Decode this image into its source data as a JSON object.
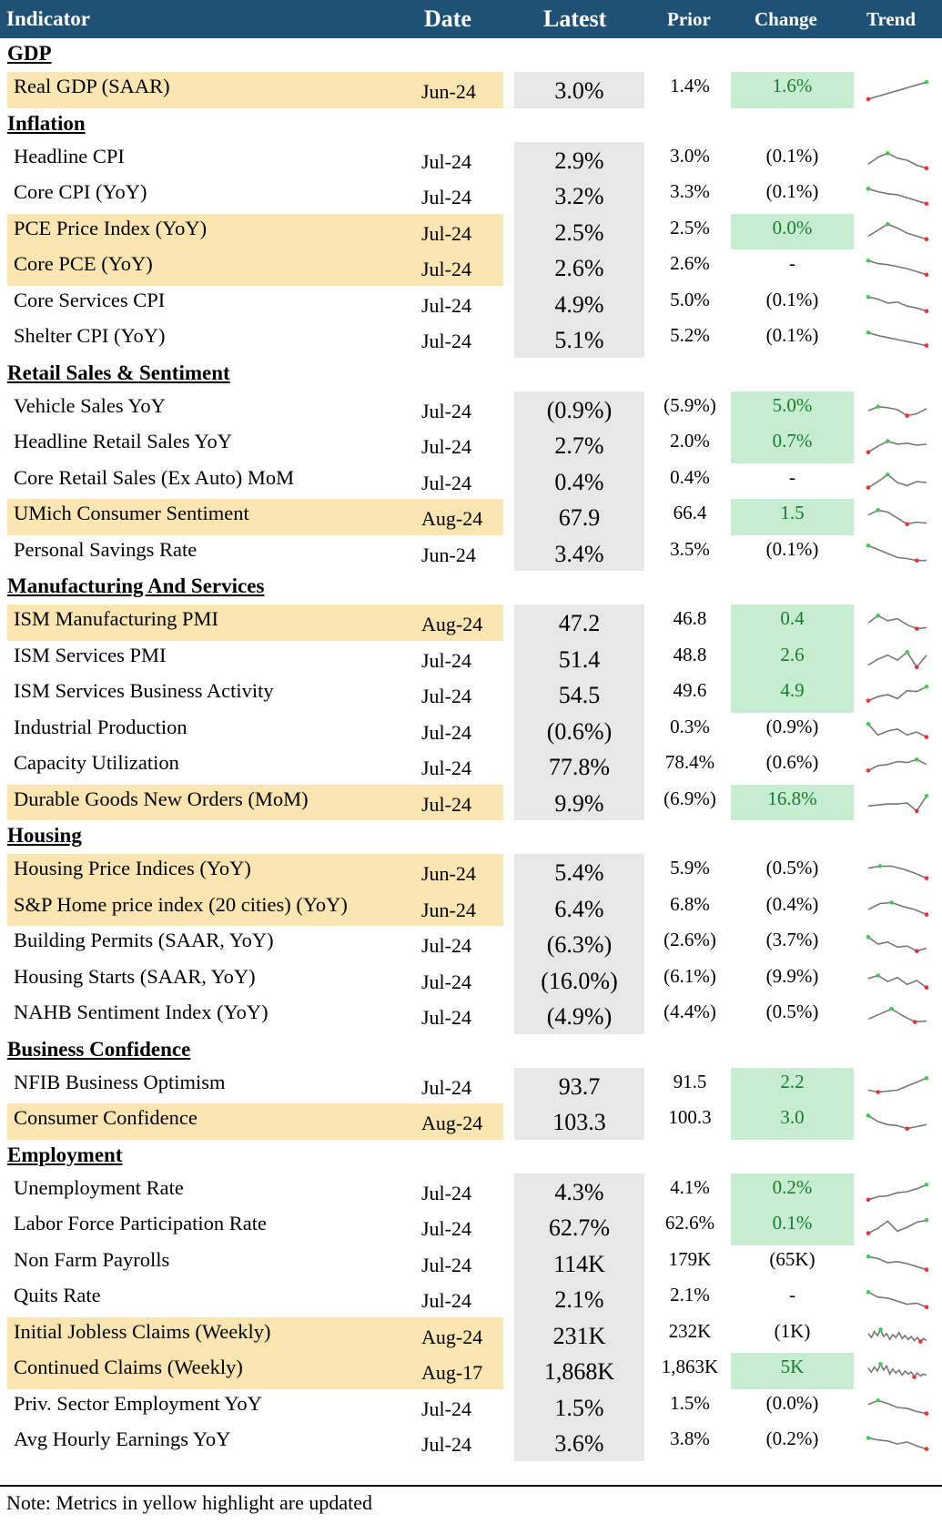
{
  "header": {
    "indicator": "Indicator",
    "date": "Date",
    "latest": "Latest",
    "prior": "Prior",
    "change": "Change",
    "trend": "Trend"
  },
  "colors": {
    "header_bg": "#1f5174",
    "updated_highlight": "#fbe5b1",
    "latest_bg": "#e7e7e7",
    "positive_change_bg": "#c6edcf",
    "positive_change_text": "#1a7a33",
    "sparkline_line": "#777777",
    "sparkline_high": "#4cc45a",
    "sparkline_low": "#e8343a"
  },
  "sections": [
    {
      "title": "GDP",
      "rows": [
        {
          "name": "Real GDP (SAAR)",
          "date": "Jun-24",
          "latest": "3.0%",
          "prior": "1.4%",
          "change": "1.6%",
          "positive": true,
          "updated": true,
          "trend": [
            0.05,
            0.9
          ],
          "trend_icon": "sparkline-icon"
        }
      ]
    },
    {
      "title": "Inflation",
      "rows": [
        {
          "name": "Headline CPI",
          "date": "Jul-24",
          "latest": "2.9%",
          "prior": "3.0%",
          "change": "(0.1%)",
          "positive": false,
          "updated": false,
          "trend": [
            0.3,
            0.65,
            0.85,
            0.6,
            0.5,
            0.25,
            0.1
          ],
          "trend_icon": "sparkline-icon"
        },
        {
          "name": "Core CPI (YoY)",
          "date": "Jul-24",
          "latest": "3.2%",
          "prior": "3.3%",
          "change": "(0.1%)",
          "positive": false,
          "updated": false,
          "trend": [
            0.85,
            0.7,
            0.6,
            0.55,
            0.4,
            0.25,
            0.1
          ],
          "trend_icon": "sparkline-icon"
        },
        {
          "name": "PCE Price Index (YoY)",
          "date": "Jul-24",
          "latest": "2.5%",
          "prior": "2.5%",
          "change": "0.0%",
          "positive": true,
          "updated": true,
          "trend": [
            0.3,
            0.6,
            0.9,
            0.7,
            0.45,
            0.3,
            0.15
          ],
          "trend_icon": "sparkline-icon"
        },
        {
          "name": "Core PCE (YoY)",
          "date": "Jul-24",
          "latest": "2.6%",
          "prior": "2.6%",
          "change": "-",
          "positive": false,
          "updated": true,
          "trend": [
            0.85,
            0.7,
            0.65,
            0.55,
            0.45,
            0.3,
            0.15
          ],
          "trend_icon": "sparkline-icon"
        },
        {
          "name": "Core Services CPI",
          "date": "Jul-24",
          "latest": "4.9%",
          "prior": "5.0%",
          "change": "(0.1%)",
          "positive": false,
          "updated": false,
          "trend": [
            0.85,
            0.75,
            0.55,
            0.6,
            0.4,
            0.3,
            0.15
          ],
          "trend_icon": "sparkline-icon"
        },
        {
          "name": "Shelter CPI (YoY)",
          "date": "Jul-24",
          "latest": "5.1%",
          "prior": "5.2%",
          "change": "(0.1%)",
          "positive": false,
          "updated": false,
          "trend": [
            0.85,
            0.7,
            0.6,
            0.5,
            0.4,
            0.3,
            0.2
          ],
          "trend_icon": "sparkline-icon"
        }
      ]
    },
    {
      "title": "Retail Sales & Sentiment",
      "rows": [
        {
          "name": "Vehicle Sales YoY",
          "date": "Jul-24",
          "latest": "(0.9%)",
          "prior": "(5.9%)",
          "change": "5.0%",
          "positive": true,
          "updated": false,
          "trend": [
            0.45,
            0.65,
            0.6,
            0.5,
            0.2,
            0.3,
            0.55
          ],
          "trend_icon": "sparkline-icon"
        },
        {
          "name": "Headline Retail Sales YoY",
          "date": "Jul-24",
          "latest": "2.7%",
          "prior": "2.0%",
          "change": "0.7%",
          "positive": true,
          "updated": false,
          "trend": [
            0.15,
            0.45,
            0.7,
            0.55,
            0.6,
            0.5,
            0.55
          ],
          "trend_icon": "sparkline-icon"
        },
        {
          "name": "Core Retail Sales (Ex Auto) MoM",
          "date": "Jul-24",
          "latest": "0.4%",
          "prior": "0.4%",
          "change": "-",
          "positive": false,
          "updated": false,
          "trend": [
            0.2,
            0.5,
            0.85,
            0.45,
            0.3,
            0.5,
            0.45
          ],
          "trend_icon": "sparkline-icon"
        },
        {
          "name": "UMich Consumer Sentiment",
          "date": "Aug-24",
          "latest": "67.9",
          "prior": "66.4",
          "change": "1.5",
          "positive": true,
          "updated": true,
          "trend": [
            0.6,
            0.85,
            0.75,
            0.45,
            0.15,
            0.25,
            0.2
          ],
          "trend_icon": "sparkline-icon"
        },
        {
          "name": "Personal Savings Rate",
          "date": "Jun-24",
          "latest": "3.4%",
          "prior": "3.5%",
          "change": "(0.1%)",
          "positive": false,
          "updated": false,
          "trend": [
            0.9,
            0.7,
            0.5,
            0.3,
            0.25,
            0.15,
            0.15
          ],
          "trend_icon": "sparkline-icon"
        }
      ]
    },
    {
      "title": "Manufacturing And Services",
      "rows": [
        {
          "name": "ISM Manufacturing PMI",
          "date": "Aug-24",
          "latest": "47.2",
          "prior": "46.8",
          "change": "0.4",
          "positive": true,
          "updated": true,
          "trend": [
            0.5,
            0.85,
            0.6,
            0.7,
            0.4,
            0.2,
            0.25
          ],
          "trend_icon": "sparkline-icon"
        },
        {
          "name": "ISM Services PMI",
          "date": "Jul-24",
          "latest": "51.4",
          "prior": "48.8",
          "change": "2.6",
          "positive": true,
          "updated": false,
          "trend": [
            0.2,
            0.5,
            0.7,
            0.45,
            0.85,
            0.1,
            0.7
          ],
          "trend_icon": "sparkline-icon"
        },
        {
          "name": "ISM Services Business Activity",
          "date": "Jul-24",
          "latest": "54.5",
          "prior": "49.6",
          "change": "4.9",
          "positive": true,
          "updated": false,
          "trend": [
            0.2,
            0.4,
            0.5,
            0.3,
            0.7,
            0.65,
            0.9
          ],
          "trend_icon": "sparkline-icon"
        },
        {
          "name": "Industrial Production",
          "date": "Jul-24",
          "latest": "(0.6%)",
          "prior": "0.3%",
          "change": "(0.9%)",
          "positive": false,
          "updated": false,
          "trend": [
            0.85,
            0.3,
            0.5,
            0.6,
            0.3,
            0.45,
            0.2
          ],
          "trend_icon": "sparkline-icon"
        },
        {
          "name": "Capacity Utilization",
          "date": "Jul-24",
          "latest": "77.8%",
          "prior": "78.4%",
          "change": "(0.6%)",
          "positive": false,
          "updated": false,
          "trend": [
            0.3,
            0.55,
            0.6,
            0.75,
            0.7,
            0.85,
            0.6
          ],
          "trend_icon": "sparkline-icon"
        },
        {
          "name": "Durable Goods New Orders (MoM)",
          "date": "Jul-24",
          "latest": "9.9%",
          "prior": "(6.9%)",
          "change": "16.8%",
          "positive": true,
          "updated": true,
          "trend": [
            0.35,
            0.4,
            0.45,
            0.45,
            0.5,
            0.1,
            0.85
          ],
          "trend_icon": "sparkline-icon"
        }
      ]
    },
    {
      "title": "Housing",
      "rows": [
        {
          "name": "Housing Price Indices (YoY)",
          "date": "Jun-24",
          "latest": "5.4%",
          "prior": "5.9%",
          "change": "(0.5%)",
          "positive": false,
          "updated": true,
          "trend": [
            0.7,
            0.8,
            0.8,
            0.65,
            0.45,
            0.2
          ],
          "trend_icon": "sparkline-icon"
        },
        {
          "name": "S&P Home price index (20 cities) (YoY)",
          "date": "Jun-24",
          "latest": "6.4%",
          "prior": "6.8%",
          "change": "(0.4%)",
          "positive": false,
          "updated": true,
          "trend": [
            0.45,
            0.75,
            0.8,
            0.6,
            0.45,
            0.2
          ],
          "trend_icon": "sparkline-icon"
        },
        {
          "name": "Building Permits (SAAR, YoY)",
          "date": "Jul-24",
          "latest": "(6.3%)",
          "prior": "(2.6%)",
          "change": "(3.7%)",
          "positive": false,
          "updated": false,
          "trend": [
            0.85,
            0.5,
            0.6,
            0.35,
            0.4,
            0.15,
            0.3
          ],
          "trend_icon": "sparkline-icon"
        },
        {
          "name": "Housing Starts (SAAR, YoY)",
          "date": "Jul-24",
          "latest": "(16.0%)",
          "prior": "(6.1%)",
          "change": "(9.9%)",
          "positive": false,
          "updated": false,
          "trend": [
            0.6,
            0.75,
            0.45,
            0.65,
            0.3,
            0.5,
            0.15
          ],
          "trend_icon": "sparkline-icon"
        },
        {
          "name": "NAHB Sentiment Index (YoY)",
          "date": "Jul-24",
          "latest": "(4.9%)",
          "prior": "(4.4%)",
          "change": "(0.5%)",
          "positive": false,
          "updated": false,
          "trend": [
            0.35,
            0.6,
            0.85,
            0.5,
            0.2,
            0.25
          ],
          "trend_icon": "sparkline-icon"
        }
      ]
    },
    {
      "title": "Business Confidence",
      "rows": [
        {
          "name": "NFIB Business Optimism",
          "date": "Jul-24",
          "latest": "93.7",
          "prior": "91.5",
          "change": "2.2",
          "positive": true,
          "updated": false,
          "trend": [
            0.3,
            0.2,
            0.25,
            0.3,
            0.5,
            0.7,
            0.9
          ],
          "trend_icon": "sparkline-icon"
        },
        {
          "name": "Consumer Confidence",
          "date": "Aug-24",
          "latest": "103.3",
          "prior": "100.3",
          "change": "3.0",
          "positive": true,
          "updated": true,
          "trend": [
            0.8,
            0.5,
            0.35,
            0.3,
            0.15,
            0.25,
            0.35
          ],
          "trend_icon": "sparkline-icon"
        }
      ]
    },
    {
      "title": "Employment",
      "rows": [
        {
          "name": "Unemployment Rate",
          "date": "Jul-24",
          "latest": "4.3%",
          "prior": "4.1%",
          "change": "0.2%",
          "positive": true,
          "updated": false,
          "trend": [
            0.1,
            0.25,
            0.3,
            0.45,
            0.5,
            0.65,
            0.85
          ],
          "trend_icon": "sparkline-icon"
        },
        {
          "name": "Labor Force Participation Rate",
          "date": "Jul-24",
          "latest": "62.7%",
          "prior": "62.6%",
          "change": "0.1%",
          "positive": true,
          "updated": false,
          "trend": [
            0.2,
            0.45,
            0.8,
            0.3,
            0.5,
            0.75,
            0.85
          ],
          "trend_icon": "sparkline-icon"
        },
        {
          "name": "Non Farm Payrolls",
          "date": "Jul-24",
          "latest": "114K",
          "prior": "179K",
          "change": "(65K)",
          "positive": false,
          "updated": false,
          "trend": [
            0.85,
            0.75,
            0.55,
            0.6,
            0.5,
            0.35,
            0.2
          ],
          "trend_icon": "sparkline-icon"
        },
        {
          "name": "Quits Rate",
          "date": "Jul-24",
          "latest": "2.1%",
          "prior": "2.1%",
          "change": "-",
          "positive": false,
          "updated": false,
          "trend": [
            0.85,
            0.6,
            0.55,
            0.4,
            0.25,
            0.3,
            0.1
          ],
          "trend_icon": "sparkline-icon"
        },
        {
          "name": "Initial Jobless Claims (Weekly)",
          "date": "Aug-24",
          "latest": "231K",
          "prior": "232K",
          "change": "(1K)",
          "positive": false,
          "updated": true,
          "trend": [
            0.6,
            0.4,
            0.7,
            0.5,
            0.8,
            0.45,
            0.6,
            0.3,
            0.55,
            0.4,
            0.65,
            0.35,
            0.5,
            0.3,
            0.45,
            0.25,
            0.4,
            0.2,
            0.35,
            0.25
          ],
          "trend_icon": "sparkline-icon"
        },
        {
          "name": "Continued Claims (Weekly)",
          "date": "Aug-17",
          "latest": "1,868K",
          "prior": "1,863K",
          "change": "5K",
          "positive": true,
          "updated": true,
          "trend": [
            0.65,
            0.45,
            0.7,
            0.5,
            0.85,
            0.55,
            0.75,
            0.35,
            0.6,
            0.4,
            0.55,
            0.3,
            0.5,
            0.35,
            0.45,
            0.2,
            0.4,
            0.25,
            0.35,
            0.3
          ],
          "trend_icon": "sparkline-icon"
        },
        {
          "name": "Priv. Sector Employment YoY",
          "date": "Jul-24",
          "latest": "1.5%",
          "prior": "1.5%",
          "change": "(0.0%)",
          "positive": false,
          "updated": false,
          "trend": [
            0.65,
            0.85,
            0.7,
            0.5,
            0.45,
            0.3,
            0.2
          ],
          "trend_icon": "sparkline-icon"
        },
        {
          "name": "Avg Hourly Earnings YoY",
          "date": "Jul-24",
          "latest": "3.6%",
          "prior": "3.8%",
          "change": "(0.2%)",
          "positive": false,
          "updated": false,
          "trend": [
            0.75,
            0.65,
            0.6,
            0.45,
            0.55,
            0.35,
            0.2
          ],
          "trend_icon": "sparkline-icon"
        }
      ]
    }
  ],
  "footer": {
    "note": "Note: Metrics in yellow highlight are updated"
  }
}
